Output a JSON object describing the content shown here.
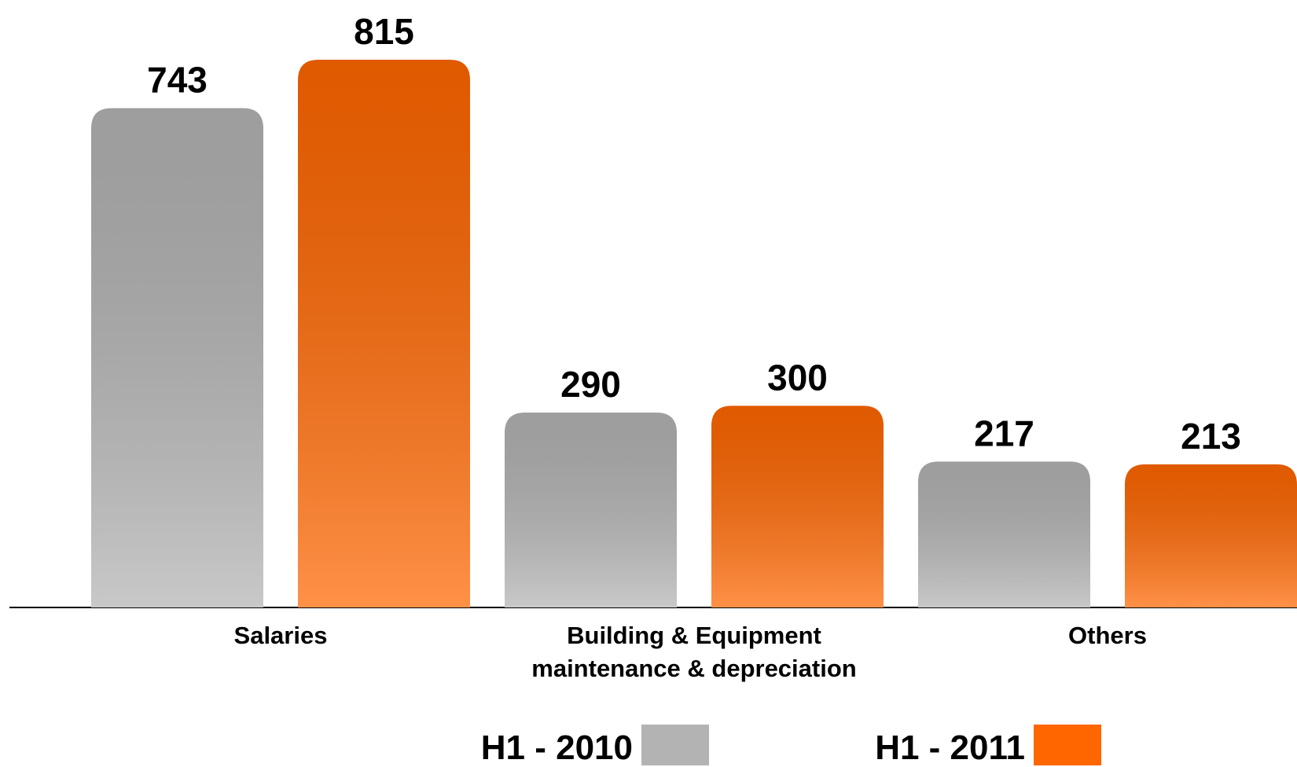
{
  "chart_data": {
    "type": "bar",
    "categories": [
      "Salaries",
      "Building & Equipment\nmaintenance & depreciation",
      "Others"
    ],
    "series": [
      {
        "name": "H1 - 2010",
        "color": "#b3b3b3",
        "values": [
          743,
          290,
          217
        ]
      },
      {
        "name": "H1 - 2011",
        "color": "#ff6600",
        "values": [
          815,
          300,
          213
        ]
      }
    ]
  }
}
